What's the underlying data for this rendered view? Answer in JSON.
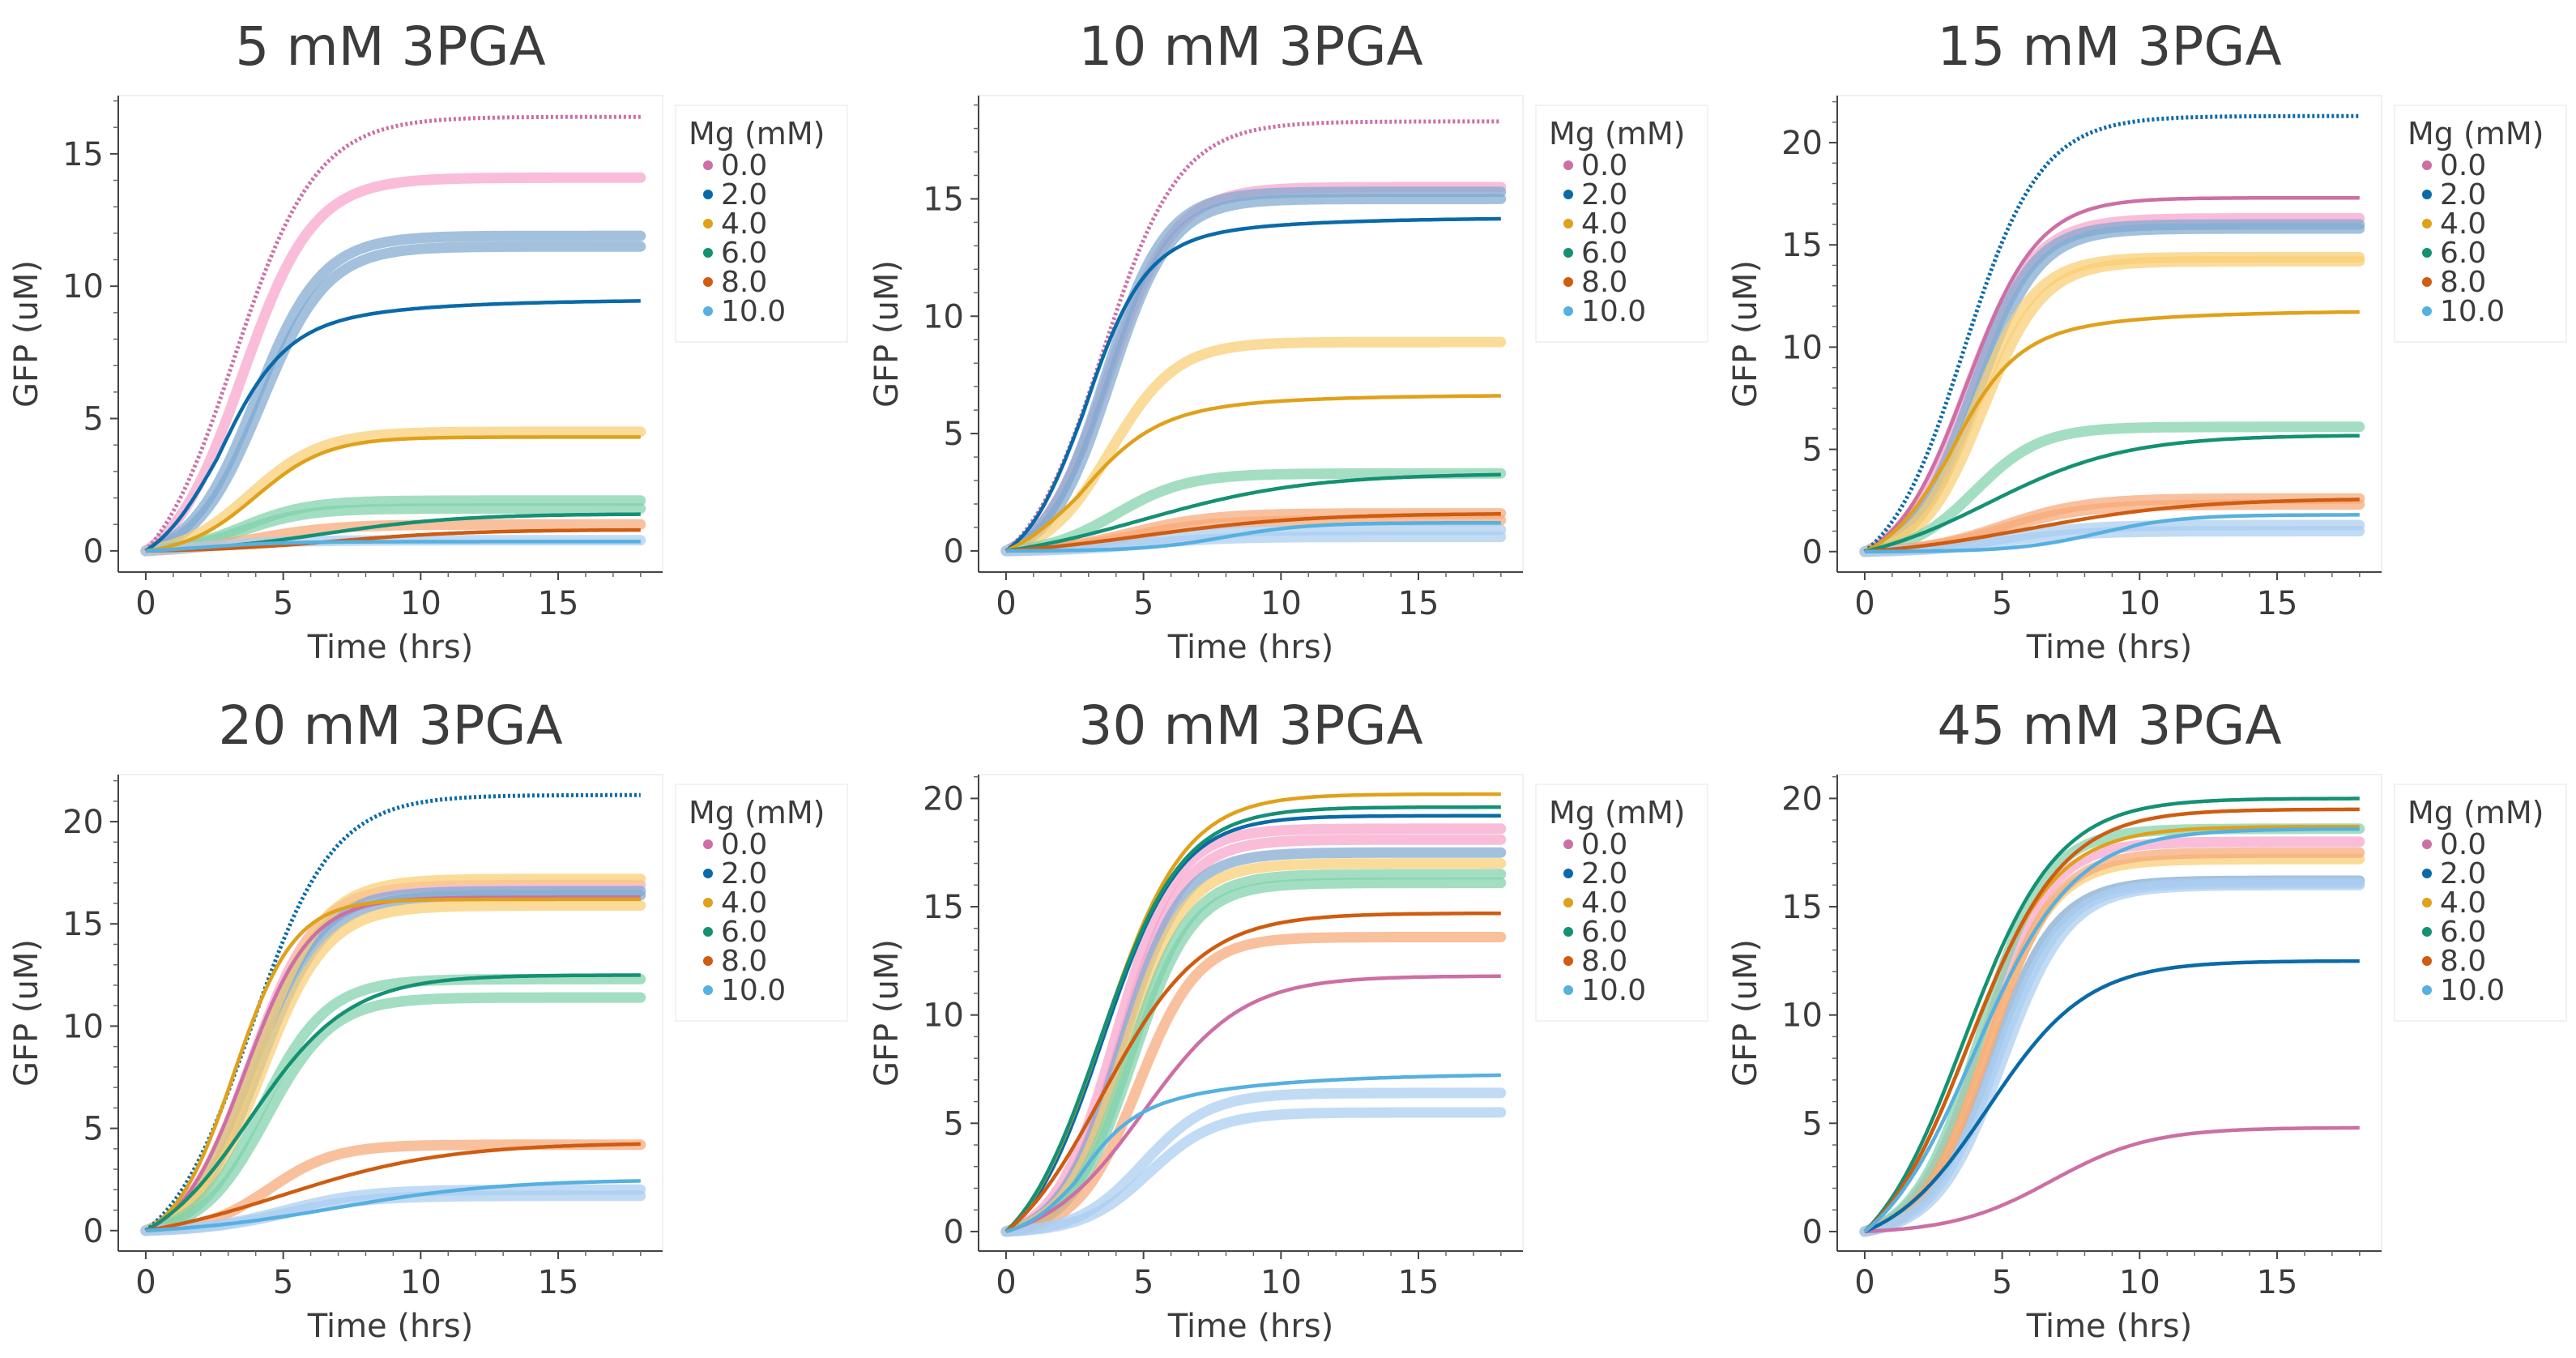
{
  "chart_data": [
    {
      "type": "line",
      "title": "5 mM 3PGA",
      "xlabel": "Time (hrs)",
      "ylabel": "GFP (uM)",
      "xlim": [
        -1,
        18.8
      ],
      "ylim": [
        -0.8,
        17.2
      ],
      "xticks": [
        0,
        5,
        10,
        15
      ],
      "yticks": [
        0,
        5,
        10,
        15
      ],
      "legend_title": "Mg (mM)",
      "series": [
        {
          "name": "0.0",
          "color": "#cc6fa5",
          "data_style": "dotted",
          "data": {
            "plateau": 16.4,
            "t_half": 3.2,
            "steep": 1.5,
            "shape": "sigmoid"
          },
          "fits": [
            {
              "plateau": 14.1,
              "t_half": 3.5,
              "steep": 1.3
            }
          ]
        },
        {
          "name": "2.0",
          "color": "#0a6aa8",
          "data_style": "solid",
          "data": {
            "plateau": 10.4,
            "t_half": 2.6,
            "steep": 1.2,
            "shape": "shoulder",
            "mid": 8.8
          },
          "fits": [
            {
              "plateau": 11.9,
              "t_half": 4.0,
              "steep": 1.2
            },
            {
              "plateau": 11.5,
              "t_half": 4.2,
              "steep": 1.2
            }
          ]
        },
        {
          "name": "4.0",
          "color": "#e0a11a",
          "data_style": "solid",
          "data": {
            "plateau": 4.3,
            "t_half": 4.0,
            "steep": 1.3,
            "shape": "sigmoid"
          },
          "fits": [
            {
              "plateau": 4.5,
              "t_half": 3.8,
              "steep": 1.3
            }
          ]
        },
        {
          "name": "6.0",
          "color": "#149173",
          "data_style": "solid",
          "data": {
            "plateau": 1.4,
            "t_half": 6.5,
            "steep": 2.5,
            "shape": "sigmoid"
          },
          "fits": [
            {
              "plateau": 1.9,
              "t_half": 3.5,
              "steep": 1.2
            },
            {
              "plateau": 1.6,
              "t_half": 3.5,
              "steep": 1.2
            }
          ]
        },
        {
          "name": "8.0",
          "color": "#cf5c10",
          "data_style": "solid",
          "data": {
            "plateau": 0.8,
            "t_half": 7,
            "steep": 2.5,
            "shape": "sigmoid"
          },
          "fits": [
            {
              "plateau": 1.0,
              "t_half": 4,
              "steep": 1.5
            }
          ]
        },
        {
          "name": "10.0",
          "color": "#56b0e0",
          "data_style": "solid",
          "data": {
            "plateau": 0.35,
            "t_half": 2,
            "steep": 1.5,
            "shape": "sigmoid"
          },
          "fits": [
            {
              "plateau": 0.4,
              "t_half": 2,
              "steep": 1.5
            }
          ]
        }
      ]
    },
    {
      "type": "line",
      "title": "10 mM 3PGA",
      "xlabel": "Time (hrs)",
      "ylabel": "GFP (uM)",
      "xlim": [
        -1,
        18.8
      ],
      "ylim": [
        -0.9,
        19.4
      ],
      "xticks": [
        0,
        5,
        10,
        15
      ],
      "yticks": [
        0,
        5,
        10,
        15
      ],
      "legend_title": "Mg (mM)",
      "series": [
        {
          "name": "0.0",
          "color": "#cc6fa5",
          "data_style": "dotted",
          "data": {
            "plateau": 18.3,
            "t_half": 3.5,
            "steep": 1.4,
            "shape": "sigmoid"
          },
          "fits": [
            {
              "plateau": 15.5,
              "t_half": 3.7,
              "steep": 1.2
            }
          ]
        },
        {
          "name": "2.0",
          "color": "#0a6aa8",
          "data_style": "solid",
          "data": {
            "plateau": 15.2,
            "t_half": 2.8,
            "steep": 1.1,
            "shape": "shoulder",
            "mid": 13.7
          },
          "fits": [
            {
              "plateau": 15.3,
              "t_half": 3.6,
              "steep": 1.1
            },
            {
              "plateau": 15.0,
              "t_half": 3.8,
              "steep": 1.1
            }
          ]
        },
        {
          "name": "4.0",
          "color": "#e0a11a",
          "data_style": "solid",
          "data": {
            "plateau": 7.5,
            "t_half": 2.6,
            "steep": 1.4,
            "shape": "slowrise",
            "mid": 6.3
          },
          "fits": [
            {
              "plateau": 8.9,
              "t_half": 3.8,
              "steep": 1.2
            }
          ]
        },
        {
          "name": "6.0",
          "color": "#149173",
          "data_style": "solid",
          "data": {
            "plateau": 3.3,
            "t_half": 5,
            "steep": 3,
            "shape": "sigmoid"
          },
          "fits": [
            {
              "plateau": 3.3,
              "t_half": 4,
              "steep": 1.3
            }
          ]
        },
        {
          "name": "8.0",
          "color": "#cf5c10",
          "data_style": "solid",
          "data": {
            "plateau": 1.6,
            "t_half": 5,
            "steep": 3,
            "shape": "sigmoid"
          },
          "fits": [
            {
              "plateau": 1.6,
              "t_half": 4.5,
              "steep": 1.5
            },
            {
              "plateau": 1.3,
              "t_half": 4.5,
              "steep": 1.5
            }
          ]
        },
        {
          "name": "10.0",
          "color": "#56b0e0",
          "data_style": "solid",
          "data": {
            "plateau": 1.2,
            "t_half": 8,
            "steep": 1.5,
            "shape": "sigmoid"
          },
          "fits": [
            {
              "plateau": 0.9,
              "t_half": 5,
              "steep": 1.5
            },
            {
              "plateau": 0.6,
              "t_half": 5,
              "steep": 1.5
            }
          ]
        }
      ]
    },
    {
      "type": "line",
      "title": "15 mM 3PGA",
      "xlabel": "Time (hrs)",
      "ylabel": "GFP (uM)",
      "xlim": [
        -1,
        18.8
      ],
      "ylim": [
        -1.0,
        22.3
      ],
      "xticks": [
        0,
        5,
        10,
        15
      ],
      "yticks": [
        0,
        5,
        10,
        15,
        20
      ],
      "legend_title": "Mg (mM)",
      "series": [
        {
          "name": "0.0",
          "color": "#cc6fa5",
          "data_style": "solid",
          "data": {
            "plateau": 17.3,
            "t_half": 3.7,
            "steep": 1.3,
            "shape": "sigmoid"
          },
          "fits": [
            {
              "plateau": 16.3,
              "t_half": 3.7,
              "steep": 1.2
            }
          ]
        },
        {
          "name": "2.0",
          "color": "#0a6aa8",
          "data_style": "dotted",
          "data": {
            "plateau": 21.3,
            "t_half": 3.6,
            "steep": 1.4,
            "shape": "sigmoid"
          },
          "fits": [
            {
              "plateau": 16.0,
              "t_half": 3.9,
              "steep": 1.1
            },
            {
              "plateau": 15.8,
              "t_half": 4.1,
              "steep": 1.1
            }
          ]
        },
        {
          "name": "4.0",
          "color": "#e0a11a",
          "data_style": "solid",
          "data": {
            "plateau": 12.6,
            "t_half": 3.0,
            "steep": 1.2,
            "shape": "shoulder",
            "mid": 10.7
          },
          "fits": [
            {
              "plateau": 14.4,
              "t_half": 4.0,
              "steep": 1.1
            },
            {
              "plateau": 14.2,
              "t_half": 4.3,
              "steep": 1.1
            }
          ]
        },
        {
          "name": "6.0",
          "color": "#149173",
          "data_style": "solid",
          "data": {
            "plateau": 5.7,
            "t_half": 4.5,
            "steep": 2.5,
            "shape": "sigmoid"
          },
          "fits": [
            {
              "plateau": 6.1,
              "t_half": 4.0,
              "steep": 1.2
            }
          ]
        },
        {
          "name": "8.0",
          "color": "#cf5c10",
          "data_style": "solid",
          "data": {
            "plateau": 2.6,
            "t_half": 6,
            "steep": 3,
            "shape": "sigmoid"
          },
          "fits": [
            {
              "plateau": 2.6,
              "t_half": 5,
              "steep": 1.5
            },
            {
              "plateau": 2.3,
              "t_half": 5,
              "steep": 1.5
            }
          ]
        },
        {
          "name": "10.0",
          "color": "#56b0e0",
          "data_style": "solid",
          "data": {
            "plateau": 1.8,
            "t_half": 8.5,
            "steep": 1.5,
            "shape": "sigmoid"
          },
          "fits": [
            {
              "plateau": 1.3,
              "t_half": 5,
              "steep": 1.5
            },
            {
              "plateau": 1.0,
              "t_half": 5,
              "steep": 1.5
            }
          ]
        }
      ]
    },
    {
      "type": "line",
      "title": "20 mM 3PGA",
      "xlabel": "Time (hrs)",
      "ylabel": "GFP (uM)",
      "xlim": [
        -1,
        18.8
      ],
      "ylim": [
        -1.0,
        22.3
      ],
      "xticks": [
        0,
        5,
        10,
        15
      ],
      "yticks": [
        0,
        5,
        10,
        15,
        20
      ],
      "legend_title": "Mg (mM)",
      "series": [
        {
          "name": "0.0",
          "color": "#cc6fa5",
          "data_style": "solid",
          "data": {
            "plateau": 16.3,
            "t_half": 3.6,
            "steep": 1.2,
            "shape": "sigmoid"
          },
          "fits": [
            {
              "plateau": 16.9,
              "t_half": 3.8,
              "steep": 1.2
            }
          ]
        },
        {
          "name": "2.0",
          "color": "#0a6aa8",
          "data_style": "dotted",
          "data": {
            "plateau": 21.3,
            "t_half": 3.8,
            "steep": 1.5,
            "shape": "sigmoid"
          },
          "fits": [
            {
              "plateau": 16.6,
              "t_half": 3.9,
              "steep": 1.2
            },
            {
              "plateau": 16.4,
              "t_half": 4.1,
              "steep": 1.2
            }
          ]
        },
        {
          "name": "4.0",
          "color": "#e0a11a",
          "data_style": "solid",
          "data": {
            "plateau": 16.2,
            "t_half": 3.2,
            "steep": 1.1,
            "shape": "sigmoid"
          },
          "fits": [
            {
              "plateau": 17.2,
              "t_half": 4.0,
              "steep": 1.2
            },
            {
              "plateau": 15.9,
              "t_half": 4.2,
              "steep": 1.2
            }
          ]
        },
        {
          "name": "6.0",
          "color": "#149173",
          "data_style": "solid",
          "data": {
            "plateau": 12.5,
            "t_half": 3.8,
            "steep": 1.8,
            "shape": "sigmoid"
          },
          "fits": [
            {
              "plateau": 12.3,
              "t_half": 4.2,
              "steep": 1.2
            },
            {
              "plateau": 11.4,
              "t_half": 4.4,
              "steep": 1.2
            }
          ]
        },
        {
          "name": "8.0",
          "color": "#cf5c10",
          "data_style": "solid",
          "data": {
            "plateau": 4.3,
            "t_half": 5,
            "steep": 3,
            "shape": "sigmoid"
          },
          "fits": [
            {
              "plateau": 4.2,
              "t_half": 4.5,
              "steep": 1.2
            }
          ]
        },
        {
          "name": "10.0",
          "color": "#56b0e0",
          "data_style": "solid",
          "data": {
            "plateau": 2.5,
            "t_half": 7,
            "steep": 3,
            "shape": "sigmoid"
          },
          "fits": [
            {
              "plateau": 2.0,
              "t_half": 5,
              "steep": 1.5
            },
            {
              "plateau": 1.7,
              "t_half": 5,
              "steep": 1.5
            }
          ]
        }
      ]
    },
    {
      "type": "line",
      "title": "30 mM 3PGA",
      "xlabel": "Time (hrs)",
      "ylabel": "GFP (uM)",
      "xlim": [
        -1,
        18.8
      ],
      "ylim": [
        -0.9,
        21.1
      ],
      "xticks": [
        0,
        5,
        10,
        15
      ],
      "yticks": [
        0,
        5,
        10,
        15,
        20
      ],
      "legend_title": "Mg (mM)",
      "series": [
        {
          "name": "0.0",
          "color": "#cc6fa5",
          "data_style": "solid",
          "data": {
            "plateau": 11.8,
            "t_half": 5,
            "steep": 1.8,
            "shape": "sigmoid"
          },
          "fits": [
            {
              "plateau": 18.6,
              "t_half": 4.0,
              "steep": 1.1
            },
            {
              "plateau": 18.1,
              "t_half": 4.2,
              "steep": 1.1
            }
          ]
        },
        {
          "name": "2.0",
          "color": "#0a6aa8",
          "data_style": "solid",
          "data": {
            "plateau": 19.2,
            "t_half": 3.5,
            "steep": 1.4,
            "shape": "sigmoid"
          },
          "fits": [
            {
              "plateau": 17.5,
              "t_half": 4.2,
              "steep": 1.1
            }
          ]
        },
        {
          "name": "4.0",
          "color": "#e0a11a",
          "data_style": "solid",
          "data": {
            "plateau": 20.2,
            "t_half": 3.5,
            "steep": 1.5,
            "shape": "sigmoid"
          },
          "fits": [
            {
              "plateau": 17.0,
              "t_half": 4.3,
              "steep": 1.1
            }
          ]
        },
        {
          "name": "6.0",
          "color": "#149173",
          "data_style": "solid",
          "data": {
            "plateau": 19.6,
            "t_half": 3.4,
            "steep": 1.5,
            "shape": "sigmoid"
          },
          "fits": [
            {
              "plateau": 16.5,
              "t_half": 4.5,
              "steep": 1.1
            },
            {
              "plateau": 16.1,
              "t_half": 4.6,
              "steep": 1.1
            }
          ]
        },
        {
          "name": "8.0",
          "color": "#cf5c10",
          "data_style": "solid",
          "data": {
            "plateau": 14.7,
            "t_half": 3.5,
            "steep": 1.8,
            "shape": "sigmoid"
          },
          "fits": [
            {
              "plateau": 13.6,
              "t_half": 4.8,
              "steep": 1.1
            }
          ]
        },
        {
          "name": "10.0",
          "color": "#56b0e0",
          "data_style": "solid",
          "data": {
            "plateau": 7.7,
            "t_half": 2.5,
            "steep": 1.0,
            "shape": "slowrise",
            "mid": 5.3
          },
          "fits": [
            {
              "plateau": 6.4,
              "t_half": 5.0,
              "steep": 1.2
            },
            {
              "plateau": 5.5,
              "t_half": 5.2,
              "steep": 1.2
            }
          ]
        }
      ]
    },
    {
      "type": "line",
      "title": "45 mM 3PGA",
      "xlabel": "Time (hrs)",
      "ylabel": "GFP (uM)",
      "xlim": [
        -1,
        18.8
      ],
      "ylim": [
        -0.9,
        21.1
      ],
      "xticks": [
        0,
        5,
        10,
        15
      ],
      "yticks": [
        0,
        5,
        10,
        15,
        20
      ],
      "legend_title": "Mg (mM)",
      "series": [
        {
          "name": "0.0",
          "color": "#cc6fa5",
          "data_style": "solid",
          "data": {
            "plateau": 4.8,
            "t_half": 6.8,
            "steep": 1.8,
            "shape": "sigmoid"
          },
          "fits": [
            {
              "plateau": 18.0,
              "t_half": 4.3,
              "steep": 1.2
            }
          ]
        },
        {
          "name": "2.0",
          "color": "#0a6aa8",
          "data_style": "solid",
          "data": {
            "plateau": 12.5,
            "t_half": 4.5,
            "steep": 1.8,
            "shape": "sigmoid"
          },
          "fits": [
            {
              "plateau": 16.2,
              "t_half": 4.6,
              "steep": 1.2
            }
          ]
        },
        {
          "name": "4.0",
          "color": "#e0a11a",
          "data_style": "solid",
          "data": {
            "plateau": 18.7,
            "t_half": 3.7,
            "steep": 1.6,
            "shape": "sigmoid"
          },
          "fits": [
            {
              "plateau": 17.2,
              "t_half": 4.4,
              "steep": 1.2
            }
          ]
        },
        {
          "name": "6.0",
          "color": "#149173",
          "data_style": "solid",
          "data": {
            "plateau": 20.0,
            "t_half": 3.6,
            "steep": 1.7,
            "shape": "sigmoid"
          },
          "fits": [
            {
              "plateau": 18.6,
              "t_half": 4.2,
              "steep": 1.2
            }
          ]
        },
        {
          "name": "8.0",
          "color": "#cf5c10",
          "data_style": "solid",
          "data": {
            "plateau": 19.5,
            "t_half": 3.8,
            "steep": 1.7,
            "shape": "sigmoid"
          },
          "fits": [
            {
              "plateau": 17.5,
              "t_half": 4.5,
              "steep": 1.2
            }
          ]
        },
        {
          "name": "10.0",
          "color": "#56b0e0",
          "data_style": "solid",
          "data": {
            "plateau": 18.6,
            "t_half": 4.0,
            "steep": 1.8,
            "shape": "sigmoid"
          },
          "fits": [
            {
              "plateau": 16.1,
              "t_half": 4.8,
              "steep": 1.2
            },
            {
              "plateau": 16.0,
              "t_half": 5.0,
              "steep": 1.2
            }
          ]
        }
      ]
    }
  ]
}
